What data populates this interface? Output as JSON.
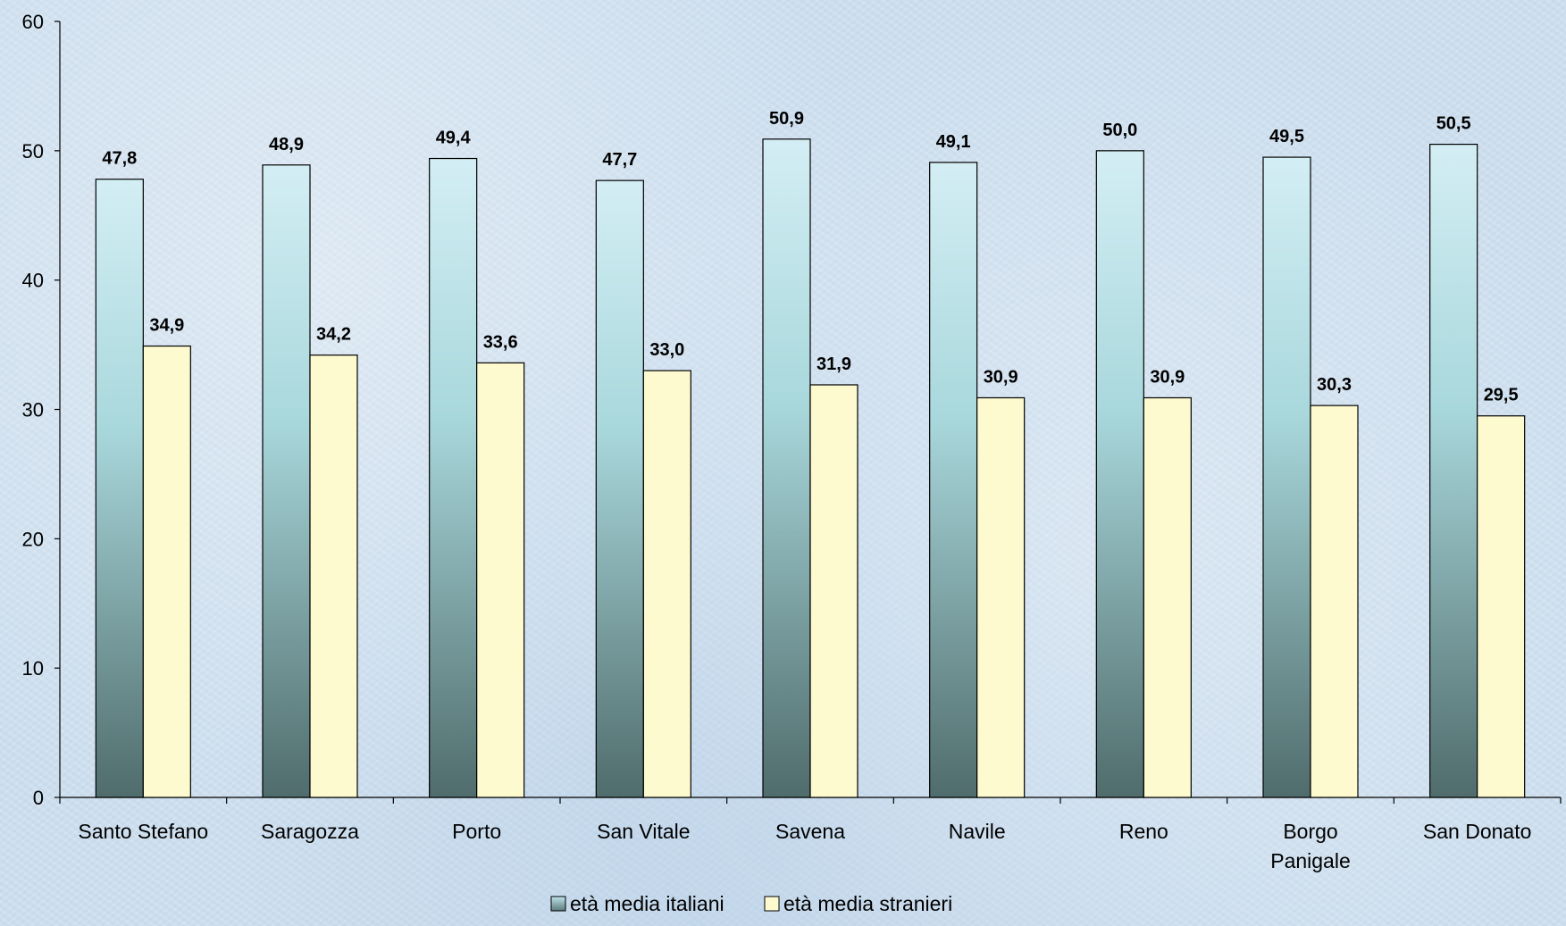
{
  "chart_data": {
    "type": "bar",
    "categories": [
      [
        "Santo Stefano"
      ],
      [
        "Saragozza"
      ],
      [
        "Porto"
      ],
      [
        "San Vitale"
      ],
      [
        "Savena"
      ],
      [
        "Navile"
      ],
      [
        "Reno"
      ],
      [
        "Borgo",
        "Panigale"
      ],
      [
        "San Donato"
      ]
    ],
    "series": [
      {
        "name": "età media italiani",
        "values": [
          47.8,
          48.9,
          49.4,
          47.7,
          50.9,
          49.1,
          50.0,
          49.5,
          50.5
        ],
        "labels": [
          "47,8",
          "48,9",
          "49,4",
          "47,7",
          "50,9",
          "49,1",
          "50,0",
          "49,5",
          "50,5"
        ],
        "color_top": "#d3eef4",
        "color_bottom": "#506c6c"
      },
      {
        "name": "età media stranieri",
        "values": [
          34.9,
          34.2,
          33.6,
          33.0,
          31.9,
          30.9,
          30.9,
          30.3,
          29.5
        ],
        "labels": [
          "34,9",
          "34,2",
          "33,6",
          "33,0",
          "31,9",
          "30,9",
          "30,9",
          "30,3",
          "29,5"
        ],
        "color": "#fdfacf"
      }
    ],
    "ylim": [
      0,
      60
    ],
    "yticks": [
      0,
      10,
      20,
      30,
      40,
      50,
      60
    ],
    "legend_position": "bottom",
    "grid": false
  }
}
